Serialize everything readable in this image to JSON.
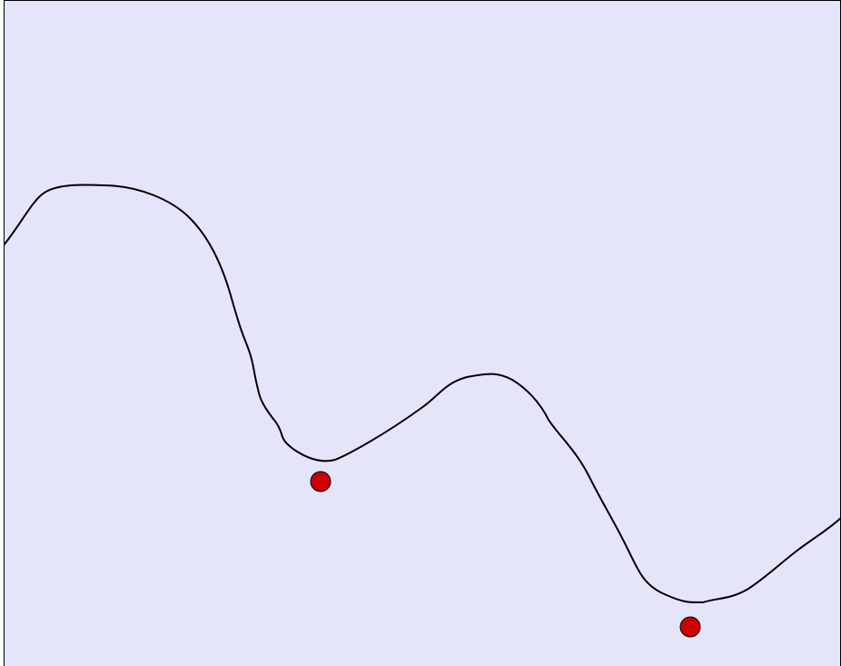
{
  "colors": {
    "background": "#e5e5fa",
    "border": "#000000",
    "terrain_line": "#000000",
    "marker_fill": "#cc0000",
    "marker_stroke": "#000000"
  },
  "markers": [
    {
      "name": "red-ball",
      "color": "#cc0000"
    },
    {
      "name": "red-ball",
      "color": "#cc0000"
    }
  ]
}
